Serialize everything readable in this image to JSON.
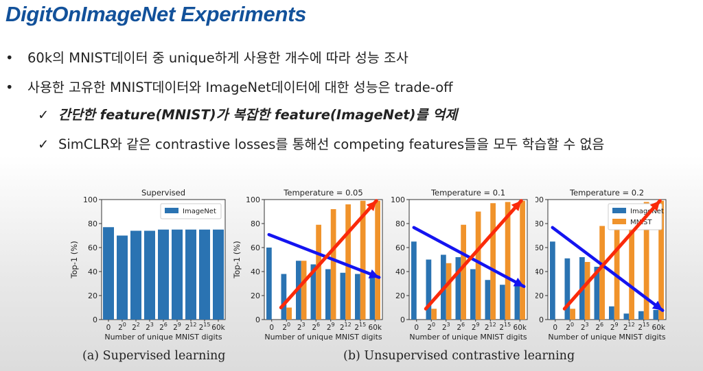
{
  "slide": {
    "title": "DigitOnImageNet Experiments",
    "bullets": [
      "60k의 MNIST데이터 중 unique하게 사용한 개수에 따라 성능 조사",
      "사용한 고유한 MNIST데이터와 ImageNet데이터에 대한 성능은 trade-off"
    ],
    "subpoints": [
      "간단한 feature(MNIST)가 복잡한 feature(ImageNet)를 억제",
      "SimCLR와 같은 contrastive losses를 통해선 competing features들을 모두 학습할 수 없음"
    ],
    "bullet_symbol": "•",
    "check_symbol": "✓",
    "captions": [
      "(a) Supervised learning",
      "(b) Unsupervised contrastive learning"
    ]
  },
  "colors": {
    "title": "#12519a",
    "imagenet": "#2a73b2",
    "mnist": "#f0932b",
    "blue_arrow": "#1414f0",
    "red_arrow": "#fa2a0a"
  },
  "chart_data": [
    {
      "type": "bar",
      "title": "Supervised",
      "xlabel": "Number of unique MNIST digits",
      "ylabel": "Top-1 (%)",
      "ylim": [
        0,
        100
      ],
      "yticks": [
        "0",
        "20",
        "40",
        "60",
        "80",
        "100"
      ],
      "categories": [
        "0",
        "2^0",
        "2^2",
        "2^3",
        "2^6",
        "2^9",
        "2^12",
        "2^15",
        "60k"
      ],
      "series": [
        {
          "name": "ImageNet",
          "values": [
            77,
            70,
            74,
            74,
            75,
            75,
            75,
            75,
            75
          ]
        }
      ],
      "legend": "top-right"
    },
    {
      "type": "bar",
      "title": "Temperature = 0.05",
      "xlabel": "Number of unique MNIST digits",
      "ylabel": "Top-1 (%)",
      "ylim": [
        0,
        100
      ],
      "yticks": [
        "0",
        "20",
        "40",
        "60",
        "80",
        "100"
      ],
      "categories": [
        "0",
        "2^0",
        "2^3",
        "2^6",
        "2^9",
        "2^12",
        "2^15",
        "60k"
      ],
      "series": [
        {
          "values": [
            60,
            38,
            49,
            46,
            42,
            39,
            38,
            37
          ]
        },
        {
          "values": [
            0,
            10,
            49,
            79,
            92,
            96,
            99,
            99
          ]
        }
      ],
      "annotations": [
        "decreasing trend arrow",
        "increasing trend arrow"
      ]
    },
    {
      "type": "bar",
      "title": "Temperature = 0.1",
      "xlabel": "Number of unique MNIST digits",
      "ylabel": "",
      "ylim": [
        0,
        100
      ],
      "yticks": [
        "0",
        "20",
        "40",
        "60",
        "80",
        "100"
      ],
      "categories": [
        "0",
        "2^0",
        "2^3",
        "2^6",
        "2^9",
        "2^12",
        "2^15",
        "60k"
      ],
      "series": [
        {
          "values": [
            65,
            50,
            54,
            52,
            42,
            33,
            29,
            29
          ]
        },
        {
          "values": [
            0,
            9,
            47,
            79,
            90,
            97,
            98,
            99
          ]
        }
      ],
      "annotations": [
        "decreasing trend arrow",
        "increasing trend arrow"
      ]
    },
    {
      "type": "bar",
      "title": "Temperature = 0.2",
      "xlabel": "Number of unique MNIST digits",
      "ylabel": "",
      "ylim": [
        0,
        100
      ],
      "yticks": [
        "0",
        "20",
        "40",
        "60",
        "80",
        "100"
      ],
      "categories": [
        "0",
        "2^0",
        "2^3",
        "2^6",
        "2^9",
        "2^12",
        "2^15",
        "60k"
      ],
      "series": [
        {
          "name": "ImageNet",
          "values": [
            65,
            51,
            52,
            44,
            11,
            5,
            7,
            8
          ]
        },
        {
          "name": "MNIST",
          "values": [
            0,
            9,
            48,
            78,
            91,
            96,
            98,
            99
          ]
        }
      ],
      "legend": "top-right",
      "annotations": [
        "decreasing trend arrow",
        "increasing trend arrow"
      ]
    }
  ]
}
